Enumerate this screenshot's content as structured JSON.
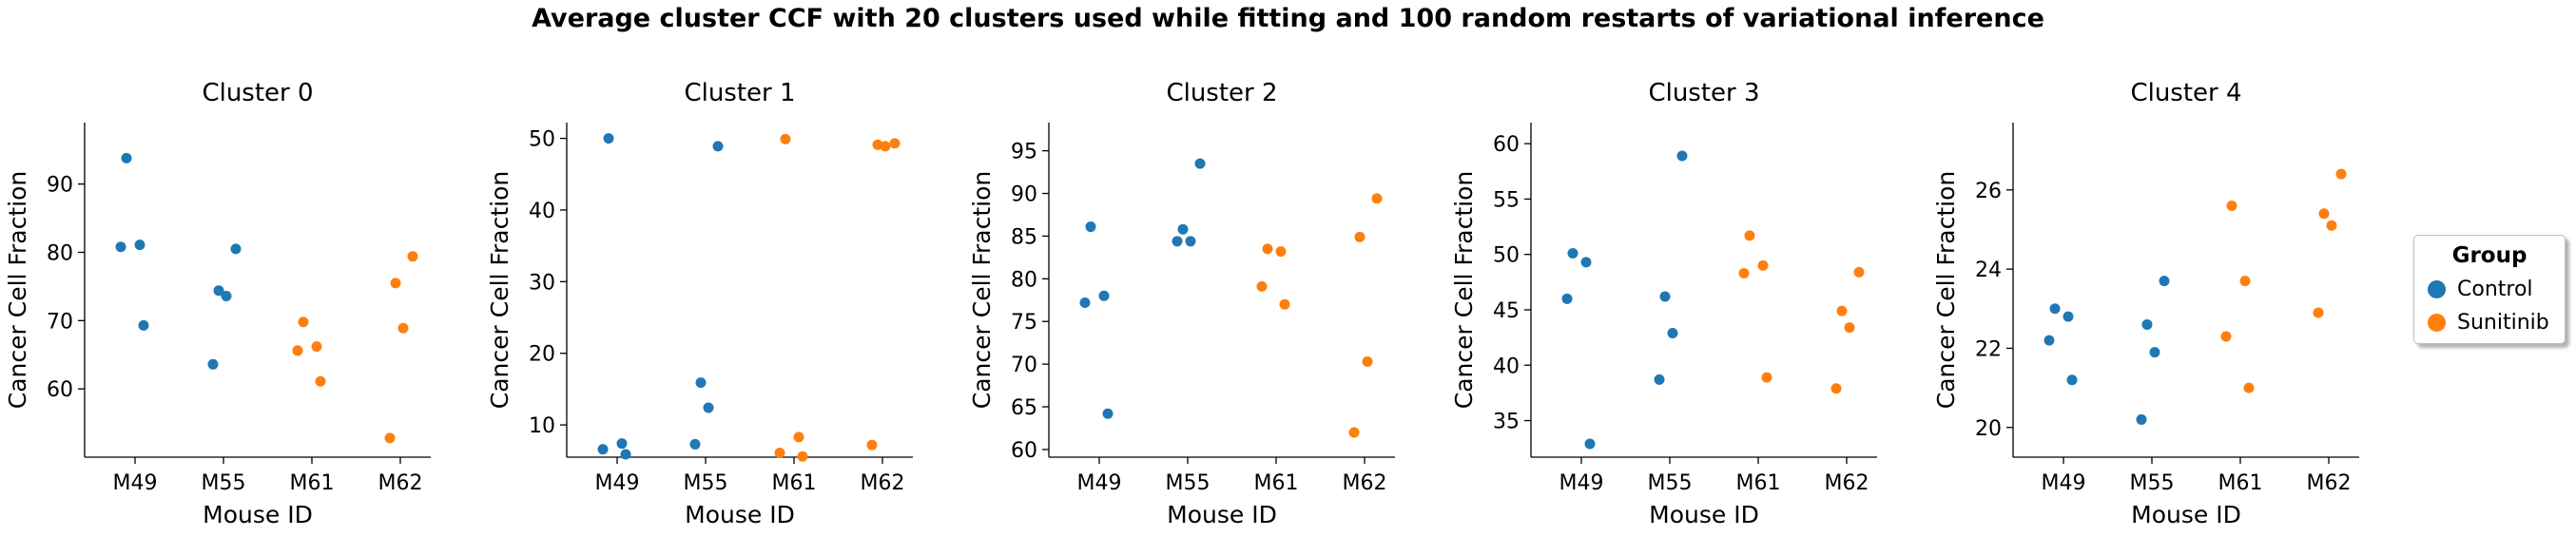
{
  "suptitle": "Average cluster CCF with 20 clusters used while fitting and 100 random restarts of variational inference",
  "legend": {
    "title": "Group",
    "items": [
      {
        "label": "Control",
        "color": "#1f77b4"
      },
      {
        "label": "Sunitinib",
        "color": "#ff7f0e"
      }
    ]
  },
  "chart_data": [
    {
      "type": "scatter",
      "title": "Cluster 0",
      "xlabel": "Mouse ID",
      "ylabel": "Cancer Cell Fraction",
      "categories": [
        "M49",
        "M55",
        "M61",
        "M62"
      ],
      "ylim": [
        50,
        99
      ],
      "yticks": [
        60,
        70,
        80,
        90
      ],
      "points": [
        {
          "x": "M49",
          "group": "Control",
          "y": 93.8
        },
        {
          "x": "M49",
          "group": "Control",
          "y": 81.1
        },
        {
          "x": "M49",
          "group": "Control",
          "y": 80.8
        },
        {
          "x": "M49",
          "group": "Control",
          "y": 69.3
        },
        {
          "x": "M55",
          "group": "Control",
          "y": 80.5
        },
        {
          "x": "M55",
          "group": "Control",
          "y": 74.4
        },
        {
          "x": "M55",
          "group": "Control",
          "y": 73.6
        },
        {
          "x": "M55",
          "group": "Control",
          "y": 63.6
        },
        {
          "x": "M61",
          "group": "Sunitinib",
          "y": 69.8
        },
        {
          "x": "M61",
          "group": "Sunitinib",
          "y": 66.2
        },
        {
          "x": "M61",
          "group": "Sunitinib",
          "y": 65.6
        },
        {
          "x": "M61",
          "group": "Sunitinib",
          "y": 61.1
        },
        {
          "x": "M62",
          "group": "Sunitinib",
          "y": 79.4
        },
        {
          "x": "M62",
          "group": "Sunitinib",
          "y": 75.5
        },
        {
          "x": "M62",
          "group": "Sunitinib",
          "y": 68.9
        },
        {
          "x": "M62",
          "group": "Sunitinib",
          "y": 52.8
        }
      ]
    },
    {
      "type": "scatter",
      "title": "Cluster 1",
      "xlabel": "Mouse ID",
      "ylabel": "Cancer Cell Fraction",
      "categories": [
        "M49",
        "M55",
        "M61",
        "M62"
      ],
      "ylim": [
        5.5,
        52.2
      ],
      "yticks": [
        10,
        20,
        30,
        40,
        50
      ],
      "points": [
        {
          "x": "M49",
          "group": "Control",
          "y": 50.0
        },
        {
          "x": "M49",
          "group": "Control",
          "y": 7.4
        },
        {
          "x": "M49",
          "group": "Control",
          "y": 6.6
        },
        {
          "x": "M49",
          "group": "Control",
          "y": 5.9
        },
        {
          "x": "M55",
          "group": "Control",
          "y": 48.9
        },
        {
          "x": "M55",
          "group": "Control",
          "y": 15.9
        },
        {
          "x": "M55",
          "group": "Control",
          "y": 12.4
        },
        {
          "x": "M55",
          "group": "Control",
          "y": 7.3
        },
        {
          "x": "M61",
          "group": "Sunitinib",
          "y": 49.9
        },
        {
          "x": "M61",
          "group": "Sunitinib",
          "y": 8.3
        },
        {
          "x": "M61",
          "group": "Sunitinib",
          "y": 6.1
        },
        {
          "x": "M61",
          "group": "Sunitinib",
          "y": 5.6
        },
        {
          "x": "M62",
          "group": "Sunitinib",
          "y": 49.3
        },
        {
          "x": "M62",
          "group": "Sunitinib",
          "y": 49.1
        },
        {
          "x": "M62",
          "group": "Sunitinib",
          "y": 48.9
        },
        {
          "x": "M62",
          "group": "Sunitinib",
          "y": 7.2
        }
      ]
    },
    {
      "type": "scatter",
      "title": "Cluster 2",
      "xlabel": "Mouse ID",
      "ylabel": "Cancer Cell Fraction",
      "categories": [
        "M49",
        "M55",
        "M61",
        "M62"
      ],
      "ylim": [
        59.1,
        98.3
      ],
      "yticks": [
        60,
        65,
        70,
        75,
        80,
        85,
        90,
        95
      ],
      "points": [
        {
          "x": "M49",
          "group": "Control",
          "y": 86.1
        },
        {
          "x": "M49",
          "group": "Control",
          "y": 78.0
        },
        {
          "x": "M49",
          "group": "Control",
          "y": 77.2
        },
        {
          "x": "M49",
          "group": "Control",
          "y": 64.2
        },
        {
          "x": "M55",
          "group": "Control",
          "y": 93.5
        },
        {
          "x": "M55",
          "group": "Control",
          "y": 85.8
        },
        {
          "x": "M55",
          "group": "Control",
          "y": 84.4
        },
        {
          "x": "M55",
          "group": "Control",
          "y": 84.4
        },
        {
          "x": "M61",
          "group": "Sunitinib",
          "y": 83.5
        },
        {
          "x": "M61",
          "group": "Sunitinib",
          "y": 83.2
        },
        {
          "x": "M61",
          "group": "Sunitinib",
          "y": 79.1
        },
        {
          "x": "M61",
          "group": "Sunitinib",
          "y": 77.0
        },
        {
          "x": "M62",
          "group": "Sunitinib",
          "y": 89.4
        },
        {
          "x": "M62",
          "group": "Sunitinib",
          "y": 84.9
        },
        {
          "x": "M62",
          "group": "Sunitinib",
          "y": 70.3
        },
        {
          "x": "M62",
          "group": "Sunitinib",
          "y": 62.0
        }
      ]
    },
    {
      "type": "scatter",
      "title": "Cluster 3",
      "xlabel": "Mouse ID",
      "ylabel": "Cancer Cell Fraction",
      "categories": [
        "M49",
        "M55",
        "M61",
        "M62"
      ],
      "ylim": [
        31.7,
        61.9
      ],
      "yticks": [
        35,
        40,
        45,
        50,
        55,
        60
      ],
      "points": [
        {
          "x": "M49",
          "group": "Control",
          "y": 50.1
        },
        {
          "x": "M49",
          "group": "Control",
          "y": 49.3
        },
        {
          "x": "M49",
          "group": "Control",
          "y": 46.0
        },
        {
          "x": "M49",
          "group": "Control",
          "y": 32.9
        },
        {
          "x": "M55",
          "group": "Control",
          "y": 58.9
        },
        {
          "x": "M55",
          "group": "Control",
          "y": 46.2
        },
        {
          "x": "M55",
          "group": "Control",
          "y": 42.9
        },
        {
          "x": "M55",
          "group": "Control",
          "y": 38.7
        },
        {
          "x": "M61",
          "group": "Sunitinib",
          "y": 51.7
        },
        {
          "x": "M61",
          "group": "Sunitinib",
          "y": 49.0
        },
        {
          "x": "M61",
          "group": "Sunitinib",
          "y": 48.3
        },
        {
          "x": "M61",
          "group": "Sunitinib",
          "y": 38.9
        },
        {
          "x": "M62",
          "group": "Sunitinib",
          "y": 48.4
        },
        {
          "x": "M62",
          "group": "Sunitinib",
          "y": 44.9
        },
        {
          "x": "M62",
          "group": "Sunitinib",
          "y": 43.4
        },
        {
          "x": "M62",
          "group": "Sunitinib",
          "y": 37.9
        }
      ]
    },
    {
      "type": "scatter",
      "title": "Cluster 4",
      "xlabel": "Mouse ID",
      "ylabel": "Cancer Cell Fraction",
      "categories": [
        "M49",
        "M55",
        "M61",
        "M62"
      ],
      "ylim": [
        19.25,
        27.7
      ],
      "yticks": [
        20,
        22,
        24,
        26
      ],
      "points": [
        {
          "x": "M49",
          "group": "Control",
          "y": 23.0
        },
        {
          "x": "M49",
          "group": "Control",
          "y": 22.8
        },
        {
          "x": "M49",
          "group": "Control",
          "y": 22.2
        },
        {
          "x": "M49",
          "group": "Control",
          "y": 21.2
        },
        {
          "x": "M55",
          "group": "Control",
          "y": 23.7
        },
        {
          "x": "M55",
          "group": "Control",
          "y": 22.6
        },
        {
          "x": "M55",
          "group": "Control",
          "y": 21.9
        },
        {
          "x": "M55",
          "group": "Control",
          "y": 20.2
        },
        {
          "x": "M61",
          "group": "Sunitinib",
          "y": 25.6
        },
        {
          "x": "M61",
          "group": "Sunitinib",
          "y": 23.7
        },
        {
          "x": "M61",
          "group": "Sunitinib",
          "y": 22.3
        },
        {
          "x": "M61",
          "group": "Sunitinib",
          "y": 21.0
        },
        {
          "x": "M62",
          "group": "Sunitinib",
          "y": 26.4
        },
        {
          "x": "M62",
          "group": "Sunitinib",
          "y": 25.4
        },
        {
          "x": "M62",
          "group": "Sunitinib",
          "y": 25.1
        },
        {
          "x": "M62",
          "group": "Sunitinib",
          "y": 22.9
        }
      ]
    }
  ]
}
